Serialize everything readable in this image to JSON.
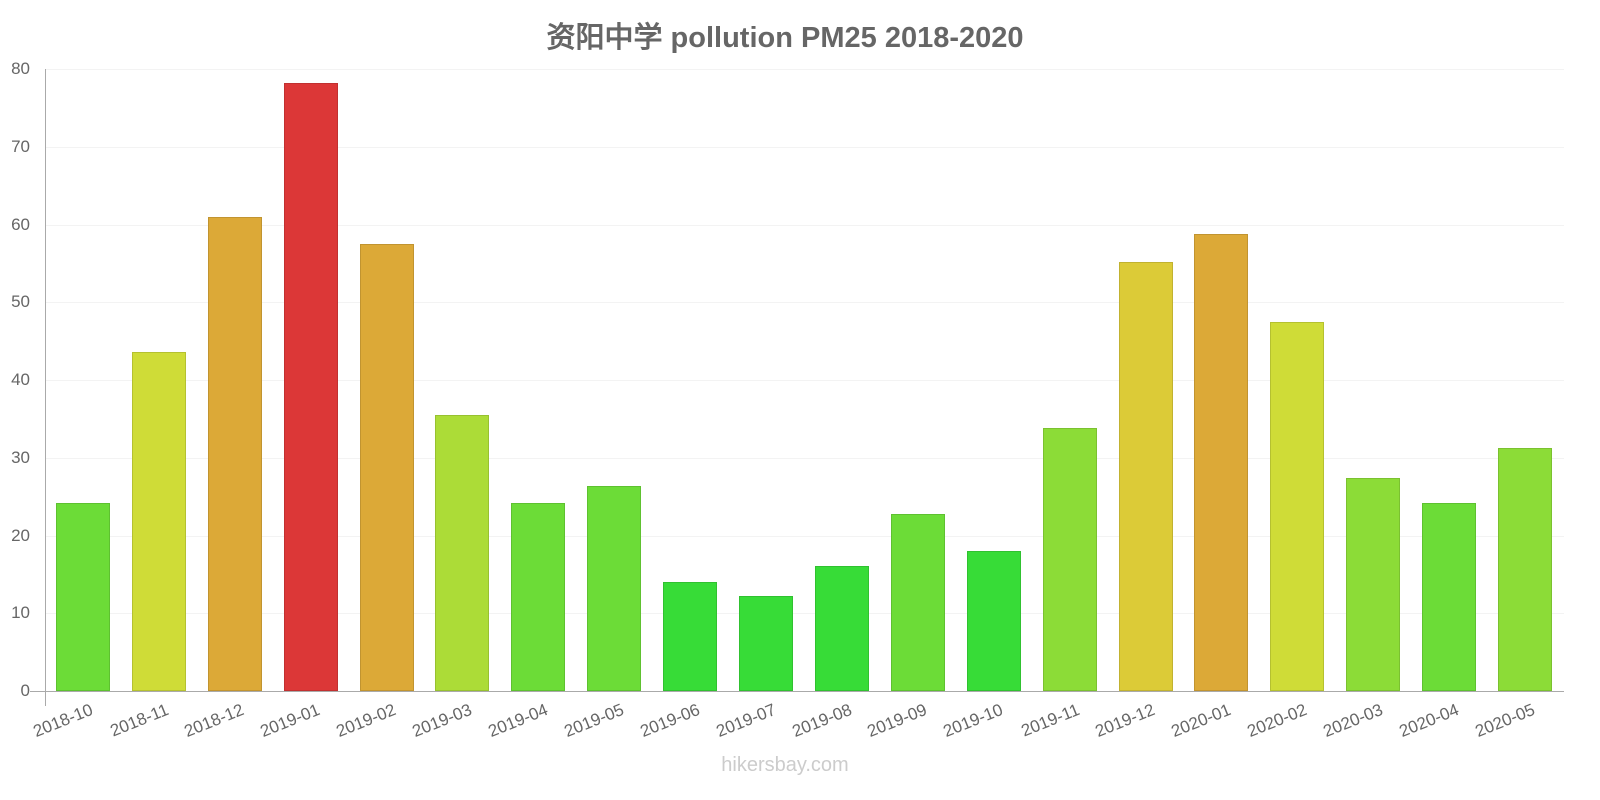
{
  "title": "资阳中学 pollution PM25 2018-2020",
  "watermark": "hikersbay.com",
  "y_ticks": [
    "0",
    "10",
    "20",
    "30",
    "40",
    "50",
    "60",
    "70",
    "80"
  ],
  "chart_data": {
    "type": "bar",
    "title": "资阳中学 pollution PM25 2018-2020",
    "xlabel": "",
    "ylabel": "",
    "ylim": [
      0,
      80
    ],
    "grid": true,
    "legend": null,
    "categories": [
      "2018-10",
      "2018-11",
      "2018-12",
      "2019-01",
      "2019-02",
      "2019-03",
      "2019-04",
      "2019-05",
      "2019-06",
      "2019-07",
      "2019-08",
      "2019-09",
      "2019-10",
      "2019-11",
      "2019-12",
      "2020-01",
      "2020-02",
      "2020-03",
      "2020-04",
      "2020-05"
    ],
    "values": [
      24.2,
      43.6,
      61.0,
      78.2,
      57.5,
      35.5,
      24.2,
      26.4,
      14.0,
      12.2,
      16.1,
      22.8,
      18.0,
      33.8,
      55.2,
      58.8,
      47.5,
      27.4,
      24.2,
      31.3
    ],
    "colors": [
      "#6cdc37",
      "#cfdc37",
      "#dca937",
      "#dc3737",
      "#dca937",
      "#acdc37",
      "#6cdc37",
      "#6cdc37",
      "#37dc37",
      "#37dc37",
      "#37dc37",
      "#6cdc37",
      "#37dc37",
      "#8cdc37",
      "#dccb37",
      "#dca937",
      "#cfdc37",
      "#8cdc37",
      "#6cdc37",
      "#8cdc37"
    ]
  }
}
